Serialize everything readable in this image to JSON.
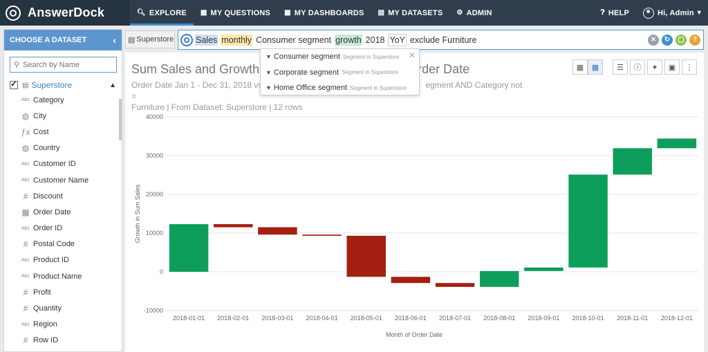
{
  "app": {
    "name": "AnswerDock"
  },
  "nav": {
    "items": [
      {
        "label": "EXPLORE",
        "icon": "search-icon"
      },
      {
        "label": "MY QUESTIONS",
        "icon": "chat-icon"
      },
      {
        "label": "MY DASHBOARDS",
        "icon": "grid-icon"
      },
      {
        "label": "MY DATASETS",
        "icon": "database-icon"
      },
      {
        "label": "ADMIN",
        "icon": "gear-icon"
      }
    ],
    "help": "HELP",
    "user": "Hi, Admin"
  },
  "sidebar": {
    "header": "CHOOSE A DATASET",
    "search_placeholder": "Search by Name",
    "dataset": "Superstore",
    "fields": [
      {
        "type": "Abc",
        "label": "Category"
      },
      {
        "type": "geo",
        "label": "City"
      },
      {
        "type": "fx",
        "label": "Cost"
      },
      {
        "type": "geo",
        "label": "Country"
      },
      {
        "type": "Abc",
        "label": "Customer ID"
      },
      {
        "type": "Abc",
        "label": "Customer Name"
      },
      {
        "type": "#",
        "label": "Discount"
      },
      {
        "type": "date",
        "label": "Order Date"
      },
      {
        "type": "Abc",
        "label": "Order ID"
      },
      {
        "type": "#",
        "label": "Postal Code"
      },
      {
        "type": "Abc",
        "label": "Product ID"
      },
      {
        "type": "Abc",
        "label": "Product Name"
      },
      {
        "type": "#",
        "label": "Profit"
      },
      {
        "type": "#",
        "label": "Quantity"
      },
      {
        "type": "Abc",
        "label": "Region"
      },
      {
        "type": "#",
        "label": "Row ID"
      }
    ]
  },
  "search": {
    "dataset_chip": "Superstore",
    "tokens": [
      {
        "text": "Sales",
        "style": "blue"
      },
      {
        "text": "monthly",
        "style": "yellow"
      },
      {
        "text": "Consumer segment",
        "style": "plain"
      },
      {
        "text": "growth",
        "style": "green"
      },
      {
        "text": "2018",
        "style": "plain"
      },
      {
        "text": "YoY",
        "style": "box"
      },
      {
        "text": "exclude Furniture",
        "style": "plain"
      }
    ]
  },
  "suggestions": [
    {
      "label": "Consumer segment",
      "hint": "Segment in Superstore"
    },
    {
      "label": "Corporate segment",
      "hint": "Segment in Superstore"
    },
    {
      "label": "Home Office segment",
      "hint": "Segment in Superstore"
    }
  ],
  "result": {
    "title_left": "Sum Sales and Growth",
    "title_right": "rder Date",
    "subtitle_line1_left": "Order Date Jan 1 - Dec 31, 2018 vs",
    "subtitle_line1_right": "egment AND Category not =",
    "subtitle_line2": "Furniture | From Dataset: Superstore | 12 rows"
  },
  "colors": {
    "increase": "#0d9e5c",
    "decrease": "#a41f10",
    "accent": "#5d96cf",
    "nav": "#2f3d4c"
  },
  "chart_data": {
    "type": "waterfall",
    "title": "",
    "xlabel": "Month of Order Date",
    "ylabel": "Growth in Sum Sales",
    "ylim": [
      -10000,
      40000
    ],
    "yticks": [
      -10000,
      0,
      10000,
      20000,
      30000,
      40000
    ],
    "categories": [
      "2018-01-01",
      "2018-02-01",
      "2018-03-01",
      "2018-04-01",
      "2018-05-01",
      "2018-06-01",
      "2018-07-01",
      "2018-08-01",
      "2018-09-01",
      "2018-10-01",
      "2018-11-01",
      "2018-12-01"
    ],
    "values": [
      12300,
      -800,
      -1900,
      -300,
      -10600,
      -1600,
      -1000,
      4100,
      900,
      24000,
      6800,
      2500
    ],
    "grid": true
  }
}
